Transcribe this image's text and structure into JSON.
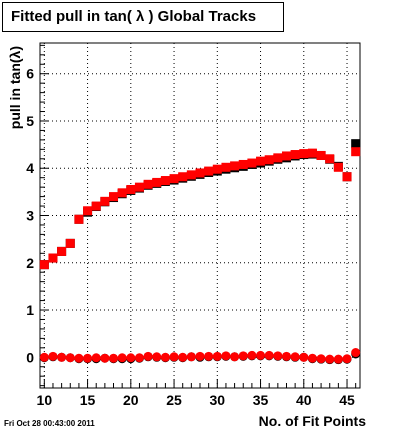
{
  "title": "Fitted pull in tan( λ )  Global Tracks",
  "footer": "Fri Oct 28 00:43:00 2011",
  "chart_data": {
    "type": "scatter",
    "title": "Fitted pull in tan( λ )  Global Tracks",
    "xlabel": "No. of Fit Points",
    "ylabel": "pull in tan(λ)",
    "xlim": [
      9.5,
      46.5
    ],
    "ylim": [
      -0.65,
      6.65
    ],
    "x_ticks": [
      10,
      15,
      20,
      25,
      30,
      35,
      40,
      45
    ],
    "y_ticks": [
      0,
      1,
      2,
      3,
      4,
      5,
      6
    ],
    "grid": true,
    "series": [
      {
        "color": "#000000",
        "marker": "square",
        "x": [
          10,
          11,
          12,
          13,
          14,
          15,
          16,
          17,
          18,
          19,
          20,
          21,
          22,
          23,
          24,
          25,
          26,
          27,
          28,
          29,
          30,
          31,
          32,
          33,
          34,
          35,
          36,
          37,
          38,
          39,
          40,
          41,
          42,
          43,
          44,
          45,
          46
        ],
        "y": [
          1.96,
          2.1,
          2.24,
          2.41,
          2.92,
          3.07,
          3.19,
          3.29,
          3.38,
          3.46,
          3.53,
          3.58,
          3.64,
          3.68,
          3.72,
          3.75,
          3.79,
          3.83,
          3.87,
          3.91,
          3.94,
          3.98,
          4.01,
          4.04,
          4.08,
          4.11,
          4.15,
          4.19,
          4.22,
          4.26,
          4.29,
          4.3,
          4.27,
          4.19,
          4.04,
          3.82,
          4.52
        ]
      },
      {
        "color": "#ff0000",
        "marker": "square",
        "x": [
          10,
          11,
          12,
          13,
          14,
          15,
          16,
          17,
          18,
          19,
          20,
          21,
          22,
          23,
          24,
          25,
          26,
          27,
          28,
          29,
          30,
          31,
          32,
          33,
          34,
          35,
          36,
          37,
          38,
          39,
          40,
          41,
          42,
          43,
          44,
          45,
          46
        ],
        "y": [
          1.96,
          2.1,
          2.24,
          2.41,
          2.92,
          3.1,
          3.2,
          3.3,
          3.4,
          3.48,
          3.55,
          3.6,
          3.66,
          3.7,
          3.74,
          3.78,
          3.82,
          3.86,
          3.9,
          3.94,
          3.98,
          4.02,
          4.05,
          4.08,
          4.11,
          4.15,
          4.18,
          4.22,
          4.26,
          4.29,
          4.31,
          4.32,
          4.27,
          4.2,
          4.02,
          3.82,
          4.35
        ]
      },
      {
        "color": "#000000",
        "marker": "circle",
        "x": [
          10,
          11,
          12,
          13,
          14,
          15,
          16,
          17,
          18,
          19,
          20,
          21,
          22,
          23,
          24,
          25,
          26,
          27,
          28,
          29,
          30,
          31,
          32,
          33,
          34,
          35,
          36,
          37,
          38,
          39,
          40,
          41,
          42,
          43,
          44,
          45,
          46
        ],
        "y": [
          -0.01,
          0.01,
          0.0,
          -0.01,
          -0.03,
          -0.03,
          -0.03,
          -0.02,
          -0.03,
          -0.03,
          -0.03,
          -0.02,
          0.01,
          0.0,
          -0.01,
          0.0,
          -0.01,
          0.01,
          0.0,
          0.01,
          0.01,
          0.02,
          0.01,
          0.02,
          0.03,
          0.03,
          0.03,
          0.02,
          0.01,
          0.0,
          0.0,
          -0.03,
          -0.04,
          -0.05,
          -0.05,
          -0.04,
          0.07
        ]
      },
      {
        "color": "#ff0000",
        "marker": "circle",
        "x": [
          10,
          11,
          12,
          13,
          14,
          15,
          16,
          17,
          18,
          19,
          20,
          21,
          22,
          23,
          24,
          25,
          26,
          27,
          28,
          29,
          30,
          31,
          32,
          33,
          34,
          35,
          36,
          37,
          38,
          39,
          40,
          41,
          42,
          43,
          44,
          45,
          46
        ],
        "y": [
          0.0,
          0.02,
          0.0,
          -0.01,
          -0.02,
          -0.02,
          -0.01,
          -0.02,
          -0.02,
          -0.01,
          -0.01,
          -0.01,
          0.02,
          0.01,
          0.0,
          0.01,
          0.0,
          0.01,
          0.02,
          0.02,
          0.02,
          0.03,
          0.01,
          0.03,
          0.04,
          0.04,
          0.04,
          0.03,
          0.02,
          0.01,
          0.0,
          -0.02,
          -0.03,
          -0.04,
          -0.04,
          -0.03,
          0.1
        ]
      }
    ]
  }
}
